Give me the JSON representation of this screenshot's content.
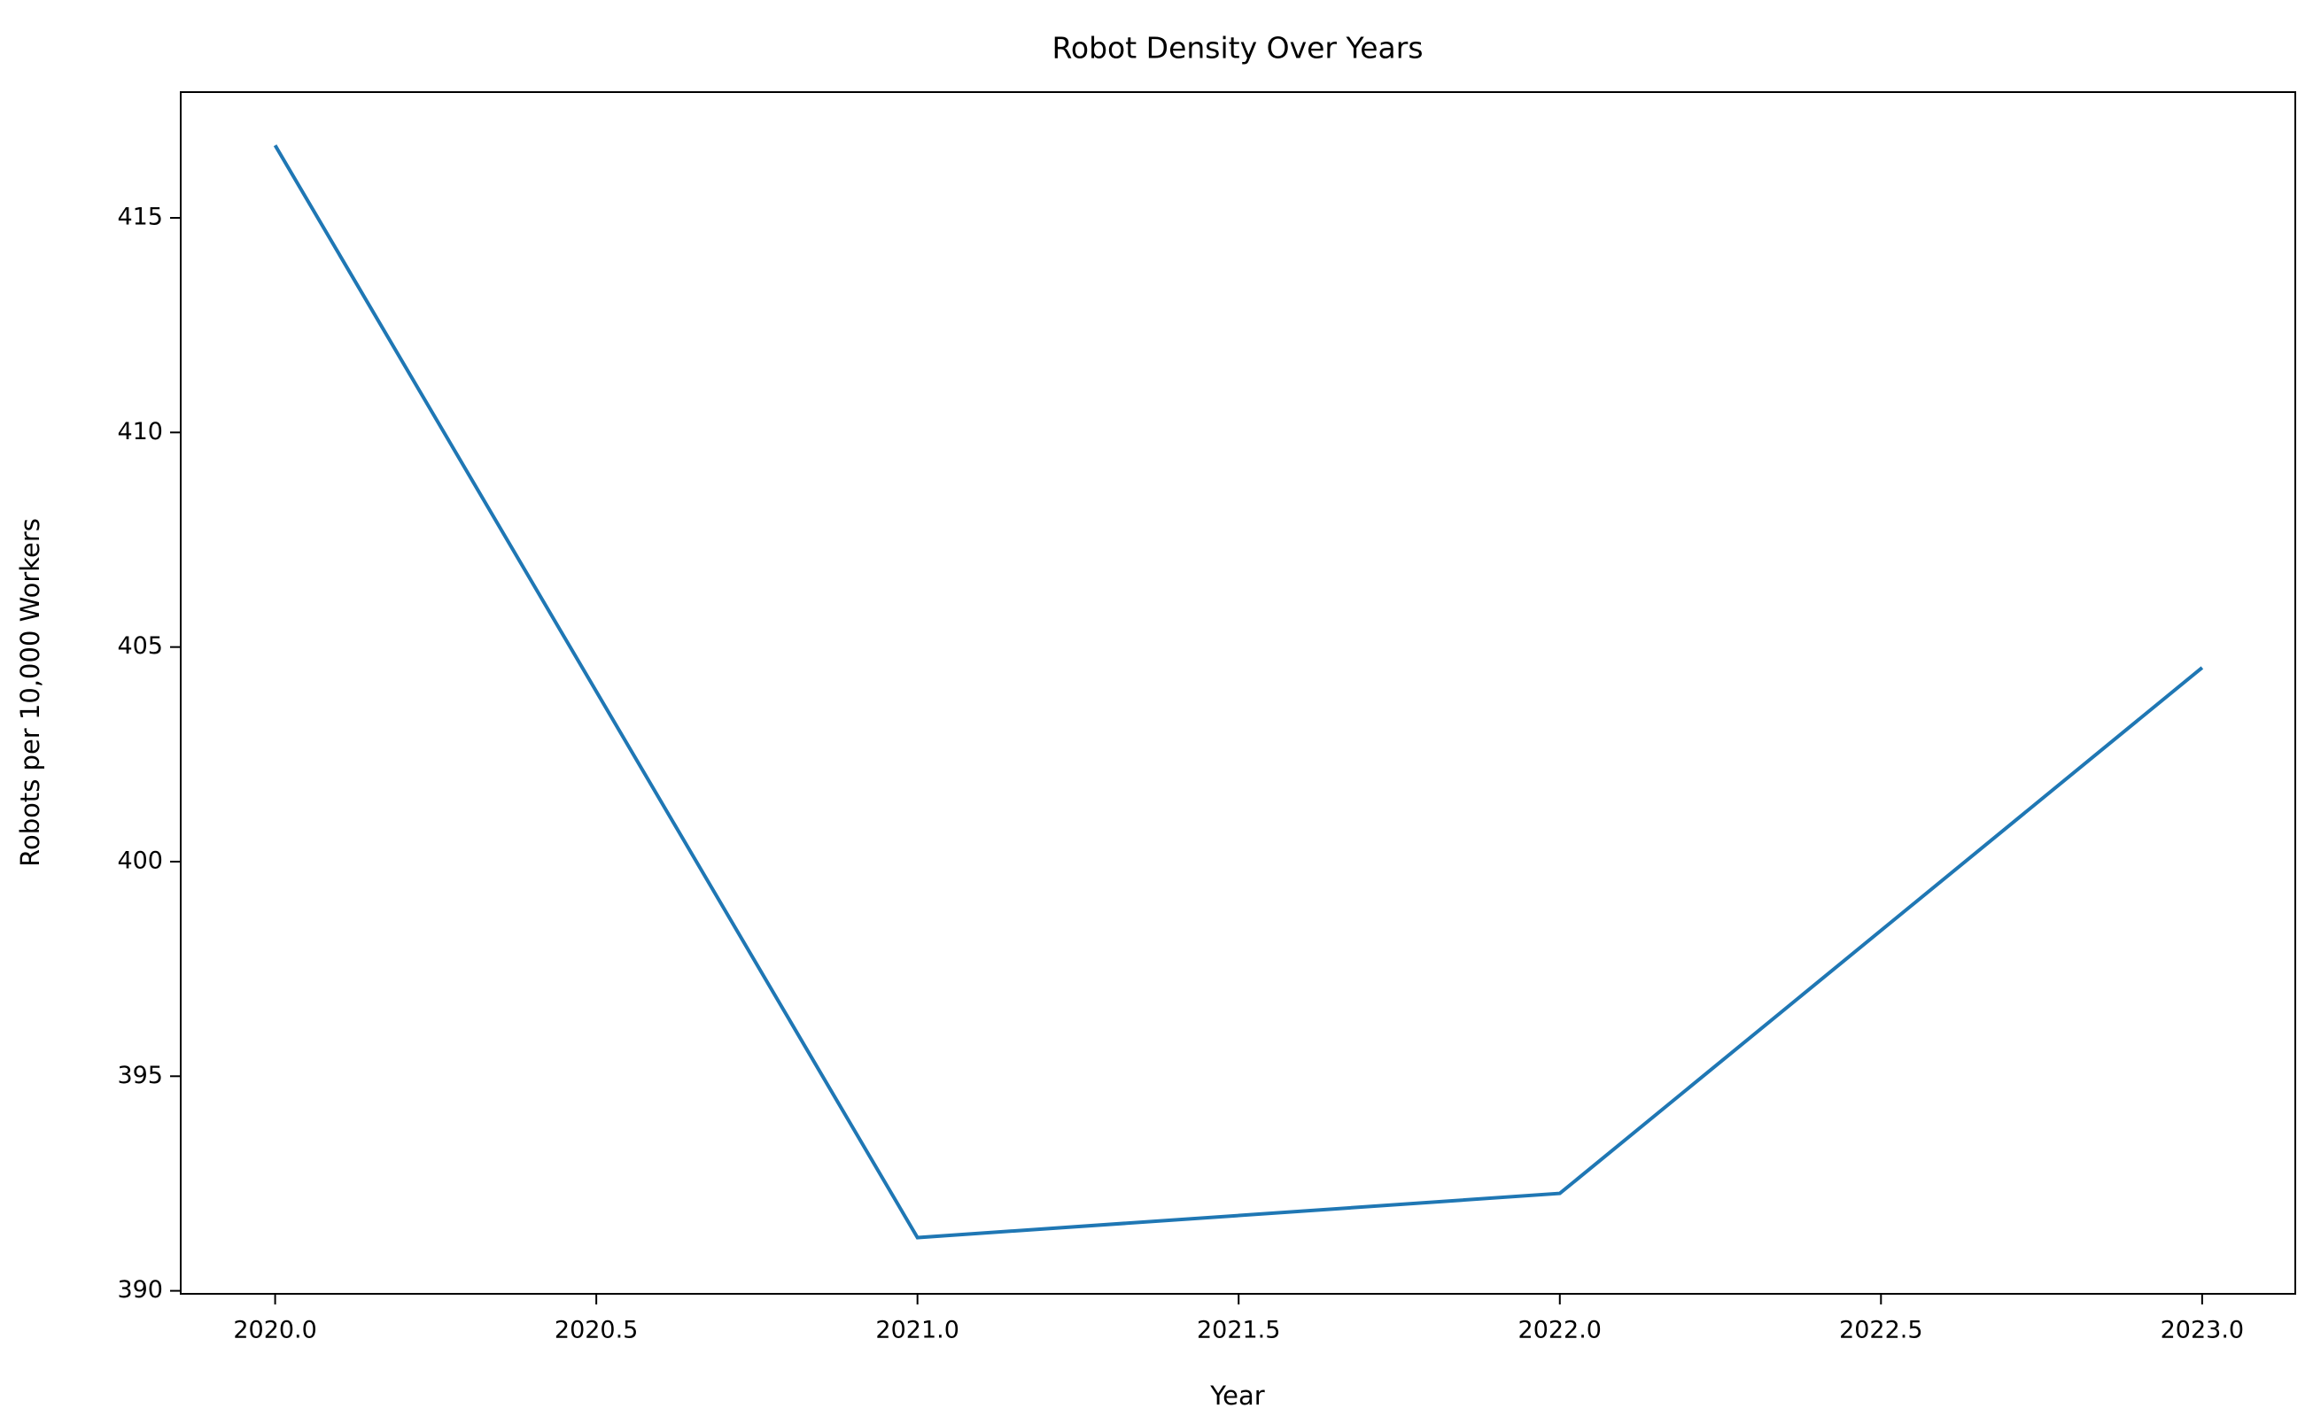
{
  "chart_data": {
    "type": "line",
    "title": "Robot Density Over Years",
    "xlabel": "Year",
    "ylabel": "Robots per 10,000 Workers",
    "x": [
      2020,
      2021,
      2022,
      2023
    ],
    "series": [
      {
        "color": "#1f77b4",
        "values": [
          416.69,
          391.24,
          392.27,
          404.52
        ]
      }
    ],
    "xlim": [
      2019.853,
      2023.145
    ],
    "xticks": [
      {
        "value": 2020,
        "label": "2020.0"
      },
      {
        "value": 2020.5,
        "label": "2020.5"
      },
      {
        "value": 2021,
        "label": "2021.0"
      },
      {
        "value": 2021.5,
        "label": "2021.5"
      },
      {
        "value": 2022,
        "label": "2022.0"
      },
      {
        "value": 2022.5,
        "label": "2022.5"
      },
      {
        "value": 2023,
        "label": "2023.0"
      }
    ],
    "ylim": [
      389.93,
      417.93
    ],
    "yticks": [
      390,
      395,
      400,
      405,
      410,
      415
    ],
    "grid": false
  }
}
